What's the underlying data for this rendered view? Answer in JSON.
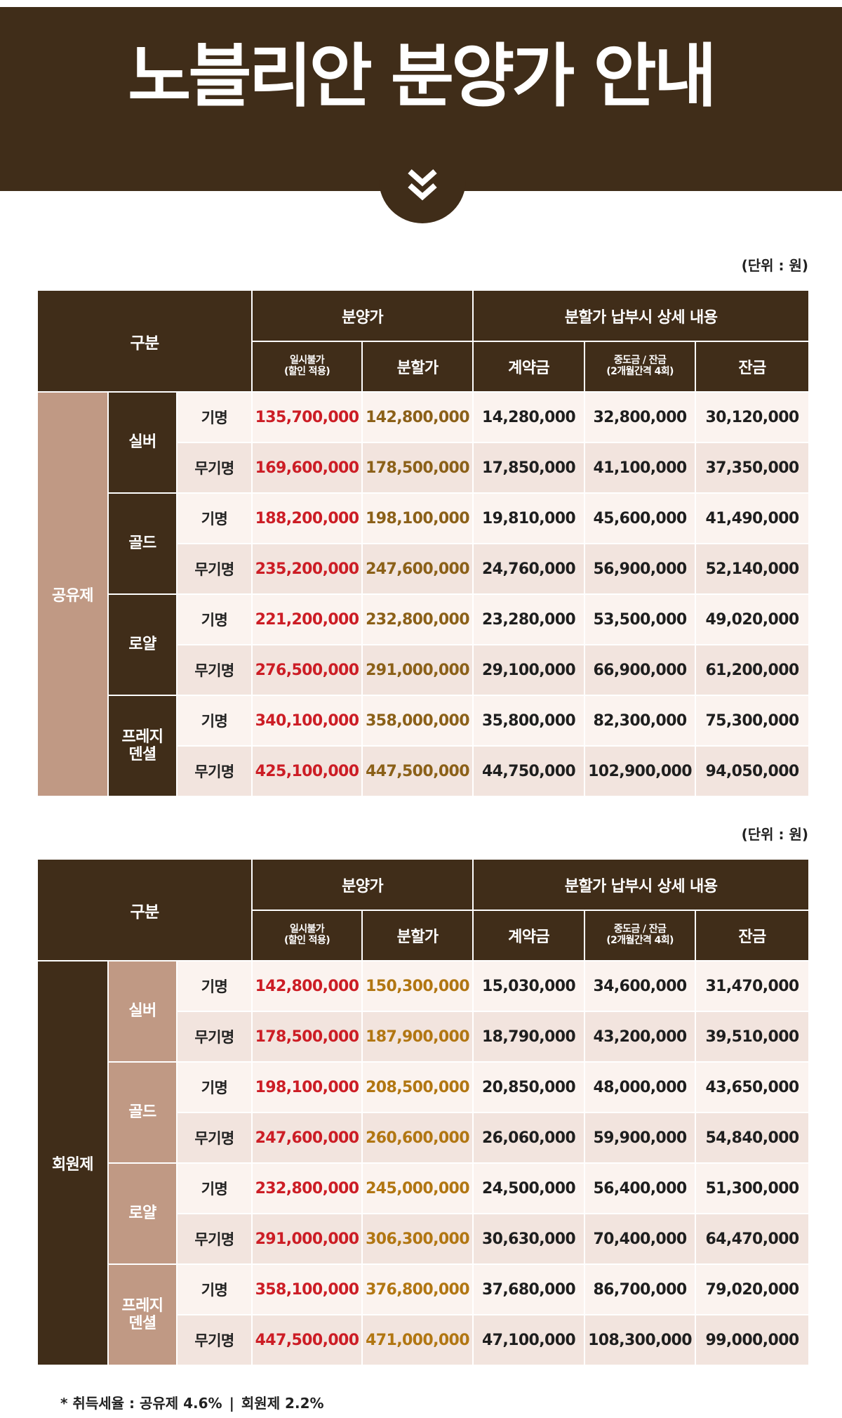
{
  "header": {
    "title": "노블리안 분양가 안내",
    "arrow_icon": "double-chevron-down-icon"
  },
  "colors": {
    "brand_brown": "#402d19",
    "tan": "#c09984",
    "row_light": "#fbf3ef",
    "row_shade": "#f2e4de",
    "lump_sum_red": "#cc1d25",
    "installment_gold": "#8b6018"
  },
  "tables": [
    {
      "unit_note": "(단위 : 원)",
      "headers": {
        "category": "구분",
        "sale_price": "분양가",
        "installment_detail": "분할가 납부시 상세 내용",
        "lump_sum_line1": "일시불가",
        "lump_sum_line2": "(할인 적용)",
        "installment": "분할가",
        "deposit": "계약금",
        "interim_line1": "중도금 / 잔금",
        "interim_line2": "(2개월간격 4회)",
        "balance": "잔금"
      },
      "type_label": "공유제",
      "groups": [
        {
          "tier": "실버",
          "rows": [
            {
              "kind": "기명",
              "lump_sum": "135,700,000",
              "installment": "142,800,000",
              "deposit": "14,280,000",
              "interim": "32,800,000",
              "balance": "30,120,000"
            },
            {
              "kind": "무기명",
              "lump_sum": "169,600,000",
              "installment": "178,500,000",
              "deposit": "17,850,000",
              "interim": "41,100,000",
              "balance": "37,350,000"
            }
          ]
        },
        {
          "tier": "골드",
          "rows": [
            {
              "kind": "기명",
              "lump_sum": "188,200,000",
              "installment": "198,100,000",
              "deposit": "19,810,000",
              "interim": "45,600,000",
              "balance": "41,490,000"
            },
            {
              "kind": "무기명",
              "lump_sum": "235,200,000",
              "installment": "247,600,000",
              "deposit": "24,760,000",
              "interim": "56,900,000",
              "balance": "52,140,000"
            }
          ]
        },
        {
          "tier": "로얄",
          "rows": [
            {
              "kind": "기명",
              "lump_sum": "221,200,000",
              "installment": "232,800,000",
              "deposit": "23,280,000",
              "interim": "53,500,000",
              "balance": "49,020,000"
            },
            {
              "kind": "무기명",
              "lump_sum": "276,500,000",
              "installment": "291,000,000",
              "deposit": "29,100,000",
              "interim": "66,900,000",
              "balance": "61,200,000"
            }
          ]
        },
        {
          "tier_line1": "프레지",
          "tier_line2": "덴셜",
          "rows": [
            {
              "kind": "기명",
              "lump_sum": "340,100,000",
              "installment": "358,000,000",
              "deposit": "35,800,000",
              "interim": "82,300,000",
              "balance": "75,300,000"
            },
            {
              "kind": "무기명",
              "lump_sum": "425,100,000",
              "installment": "447,500,000",
              "deposit": "44,750,000",
              "interim": "102,900,000",
              "balance": "94,050,000"
            }
          ]
        }
      ]
    },
    {
      "unit_note": "(단위 : 원)",
      "headers": {
        "category": "구분",
        "sale_price": "분양가",
        "installment_detail": "분할가 납부시 상세 내용",
        "lump_sum_line1": "일시불가",
        "lump_sum_line2": "(할인 적용)",
        "installment": "분할가",
        "deposit": "계약금",
        "interim_line1": "중도금 / 잔금",
        "interim_line2": "(2개월간격 4회)",
        "balance": "잔금"
      },
      "type_label": "회원제",
      "groups": [
        {
          "tier": "실버",
          "rows": [
            {
              "kind": "기명",
              "lump_sum": "142,800,000",
              "installment": "150,300,000",
              "deposit": "15,030,000",
              "interim": "34,600,000",
              "balance": "31,470,000"
            },
            {
              "kind": "무기명",
              "lump_sum": "178,500,000",
              "installment": "187,900,000",
              "deposit": "18,790,000",
              "interim": "43,200,000",
              "balance": "39,510,000"
            }
          ]
        },
        {
          "tier": "골드",
          "rows": [
            {
              "kind": "기명",
              "lump_sum": "198,100,000",
              "installment": "208,500,000",
              "deposit": "20,850,000",
              "interim": "48,000,000",
              "balance": "43,650,000"
            },
            {
              "kind": "무기명",
              "lump_sum": "247,600,000",
              "installment": "260,600,000",
              "deposit": "26,060,000",
              "interim": "59,900,000",
              "balance": "54,840,000"
            }
          ]
        },
        {
          "tier": "로얄",
          "rows": [
            {
              "kind": "기명",
              "lump_sum": "232,800,000",
              "installment": "245,000,000",
              "deposit": "24,500,000",
              "interim": "56,400,000",
              "balance": "51,300,000"
            },
            {
              "kind": "무기명",
              "lump_sum": "291,000,000",
              "installment": "306,300,000",
              "deposit": "30,630,000",
              "interim": "70,400,000",
              "balance": "64,470,000"
            }
          ]
        },
        {
          "tier_line1": "프레지",
          "tier_line2": "덴셜",
          "rows": [
            {
              "kind": "기명",
              "lump_sum": "358,100,000",
              "installment": "376,800,000",
              "deposit": "37,680,000",
              "interim": "86,700,000",
              "balance": "79,020,000"
            },
            {
              "kind": "무기명",
              "lump_sum": "447,500,000",
              "installment": "471,000,000",
              "deposit": "47,100,000",
              "interim": "108,300,000",
              "balance": "99,000,000"
            }
          ]
        }
      ]
    }
  ],
  "footnote": {
    "label": "* 취득세율 : 공유제 4.6%",
    "separator": "|",
    "second": "회원제 2.2%"
  }
}
